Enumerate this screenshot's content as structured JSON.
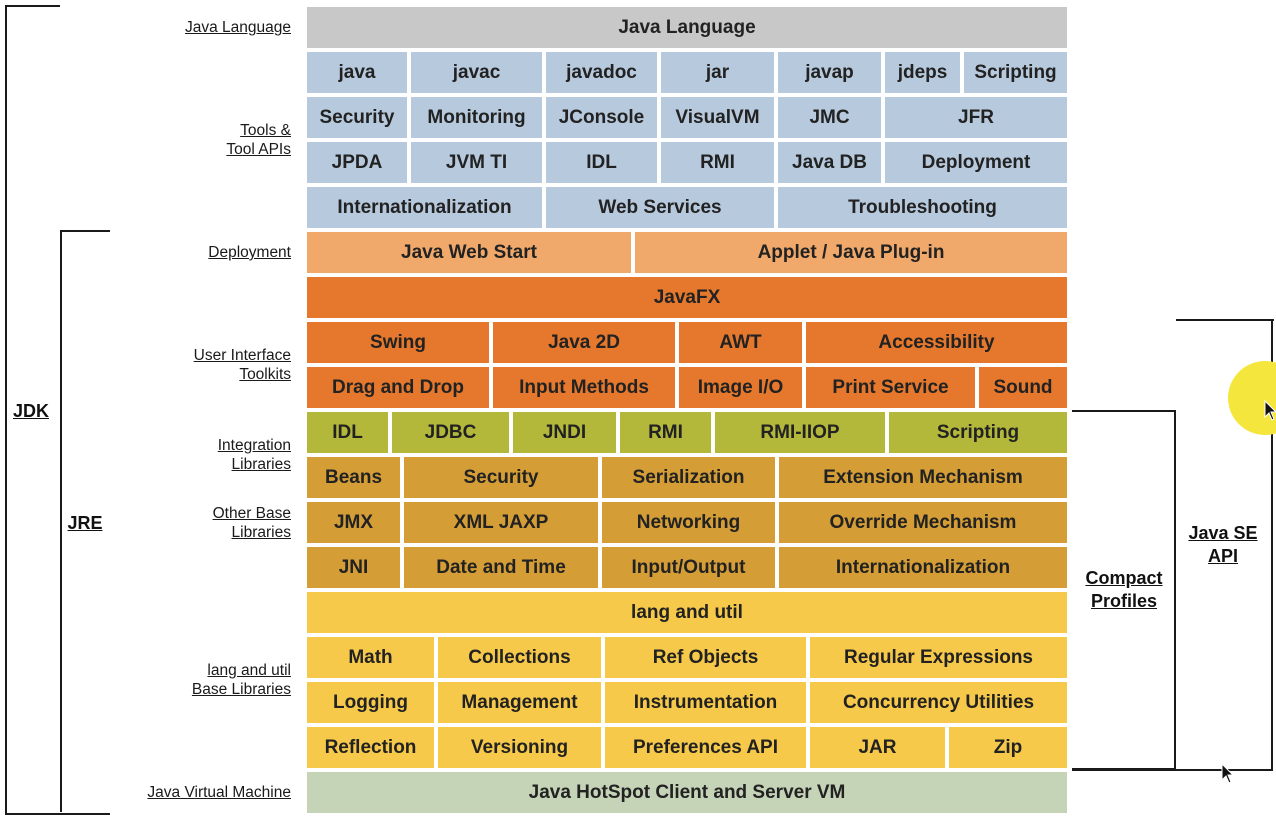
{
  "rows": [
    {
      "label": "Java Language",
      "color": "#c8c8c8",
      "cells": [
        {
          "t": "Java Language",
          "w": 764
        }
      ]
    },
    {
      "label": "",
      "color": "#b7c9dd",
      "cells": [
        {
          "t": "java",
          "w": 104
        },
        {
          "t": "javac",
          "w": 135
        },
        {
          "t": "javadoc",
          "w": 115
        },
        {
          "t": "jar",
          "w": 117
        },
        {
          "t": "javap",
          "w": 107
        },
        {
          "t": "jdeps",
          "w": 79
        },
        {
          "t": "Scripting",
          "w": 107
        }
      ]
    },
    {
      "label": "Tools &\nTool APIs",
      "color": "#b7c9dd",
      "cells": [
        {
          "t": "Security",
          "w": 104
        },
        {
          "t": "Monitoring",
          "w": 135
        },
        {
          "t": "JConsole",
          "w": 115
        },
        {
          "t": "VisualVM",
          "w": 117
        },
        {
          "t": "JMC",
          "w": 107
        },
        {
          "t": "JFR",
          "w": 186
        }
      ]
    },
    {
      "label": "",
      "color": "#b7c9dd",
      "cells": [
        {
          "t": "JPDA",
          "w": 104
        },
        {
          "t": "JVM TI",
          "w": 135
        },
        {
          "t": "IDL",
          "w": 115
        },
        {
          "t": "RMI",
          "w": 117
        },
        {
          "t": "Java DB",
          "w": 107
        },
        {
          "t": "Deployment",
          "w": 186
        }
      ]
    },
    {
      "label": "",
      "color": "#b7c9dd",
      "cells": [
        {
          "t": "Internationalization",
          "w": 239
        },
        {
          "t": "Web Services",
          "w": 232
        },
        {
          "t": "Troubleshooting",
          "w": 293
        }
      ]
    },
    {
      "label": "Deployment",
      "color": "#f0a96a",
      "cells": [
        {
          "t": "Java Web Start",
          "w": 328
        },
        {
          "t": "Applet / Java Plug-in",
          "w": 436
        }
      ]
    },
    {
      "label": "",
      "color": "#e5782c",
      "cells": [
        {
          "t": "JavaFX",
          "w": 764
        }
      ]
    },
    {
      "label": "User Interface\nToolkits",
      "color": "#e5782c",
      "cells": [
        {
          "t": "Swing",
          "w": 186
        },
        {
          "t": "Java 2D",
          "w": 186
        },
        {
          "t": "AWT",
          "w": 127
        },
        {
          "t": "Accessibility",
          "w": 265
        }
      ]
    },
    {
      "label": "",
      "color": "#e5782c",
      "cells": [
        {
          "t": "Drag and Drop",
          "w": 186
        },
        {
          "t": "Input Methods",
          "w": 186
        },
        {
          "t": "Image I/O",
          "w": 127
        },
        {
          "t": "Print Service",
          "w": 173
        },
        {
          "t": "Sound",
          "w": 92
        }
      ]
    },
    {
      "label": "Integration\nLibraries",
      "color": "#b4b83a",
      "cells": [
        {
          "t": "IDL",
          "w": 85
        },
        {
          "t": "JDBC",
          "w": 121
        },
        {
          "t": "JNDI",
          "w": 107
        },
        {
          "t": "RMI",
          "w": 95
        },
        {
          "t": "RMI-IIOP",
          "w": 174
        },
        {
          "t": "Scripting",
          "w": 182
        }
      ]
    },
    {
      "label": "",
      "color": "#d59d35",
      "cells": [
        {
          "t": "Beans",
          "w": 97
        },
        {
          "t": "Security",
          "w": 198
        },
        {
          "t": "Serialization",
          "w": 177
        },
        {
          "t": "Extension Mechanism",
          "w": 292
        }
      ]
    },
    {
      "label": "Other Base\nLibraries",
      "color": "#d59d35",
      "cells": [
        {
          "t": "JMX",
          "w": 97
        },
        {
          "t": "XML JAXP",
          "w": 198
        },
        {
          "t": "Networking",
          "w": 177
        },
        {
          "t": "Override Mechanism",
          "w": 292
        }
      ]
    },
    {
      "label": "",
      "color": "#d59d35",
      "cells": [
        {
          "t": "JNI",
          "w": 97
        },
        {
          "t": "Date and Time",
          "w": 198
        },
        {
          "t": "Input/Output",
          "w": 177
        },
        {
          "t": "Internationalization",
          "w": 292
        }
      ]
    },
    {
      "label": "",
      "color": "#f7c94a",
      "cells": [
        {
          "t": "lang and util",
          "w": 764
        }
      ]
    },
    {
      "label": "lang and util\nBase Libraries",
      "color": "#f7c94a",
      "cells": [
        {
          "t": "Math",
          "w": 131
        },
        {
          "t": "Collections",
          "w": 167
        },
        {
          "t": "Ref Objects",
          "w": 205
        },
        {
          "t": "Regular Expressions",
          "w": 261
        }
      ]
    },
    {
      "label": "",
      "color": "#f7c94a",
      "cells": [
        {
          "t": "Logging",
          "w": 131
        },
        {
          "t": "Management",
          "w": 167
        },
        {
          "t": "Instrumentation",
          "w": 205
        },
        {
          "t": "Concurrency Utilities",
          "w": 261
        }
      ]
    },
    {
      "label": "",
      "color": "#f7c94a",
      "cells": [
        {
          "t": "Reflection",
          "w": 131
        },
        {
          "t": "Versioning",
          "w": 167
        },
        {
          "t": "Preferences API",
          "w": 205
        },
        {
          "t": "JAR",
          "w": 139
        },
        {
          "t": "Zip",
          "w": 122
        }
      ]
    },
    {
      "label": "Java Virtual Machine",
      "color": "#c5d3b7",
      "cells": [
        {
          "t": "Java HotSpot Client and Server VM",
          "w": 764
        }
      ]
    }
  ],
  "brackets": {
    "jdk": "JDK",
    "jre": "JRE",
    "compact_profiles": "Compact\nProfiles",
    "java_se_api": "Java SE\nAPI"
  }
}
